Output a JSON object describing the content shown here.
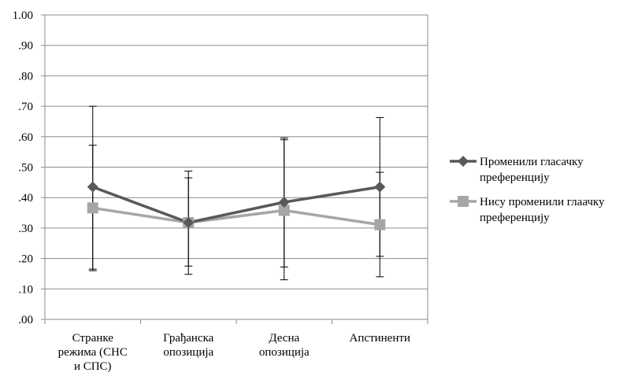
{
  "chart_data": {
    "type": "line",
    "title": "",
    "xlabel": "",
    "ylabel": "",
    "ylim": [
      0,
      1
    ],
    "yticks": [
      1.0,
      0.9,
      0.8,
      0.7,
      0.6,
      0.5,
      0.4,
      0.3,
      0.2,
      0.1,
      0.0
    ],
    "ytick_labels": [
      "1.00",
      ".90",
      ".80",
      ".70",
      ".60",
      ".50",
      ".40",
      ".30",
      ".20",
      ".10",
      ".00"
    ],
    "categories": [
      [
        "Странке",
        "режима (СНС",
        "и СПС)"
      ],
      [
        "Грађанска",
        "опозиција"
      ],
      [
        "Десна",
        "опозиција"
      ],
      [
        "Апстиненти"
      ]
    ],
    "grid": true,
    "legend_position": "right",
    "series": [
      {
        "name": [
          "Променили гласачку",
          "преференцију"
        ],
        "color": "#595959",
        "marker": "diamond",
        "values": [
          0.435,
          0.318,
          0.385,
          0.435
        ],
        "error_low": [
          0.165,
          0.148,
          0.13,
          0.207
        ],
        "error_high": [
          0.7,
          0.487,
          0.596,
          0.663
        ]
      },
      {
        "name": [
          "Нису променили глаачку",
          "преференцију"
        ],
        "color": "#a6a6a6",
        "marker": "square",
        "values": [
          0.366,
          0.318,
          0.358,
          0.311
        ],
        "error_low": [
          0.16,
          0.175,
          0.172,
          0.14
        ],
        "error_high": [
          0.572,
          0.465,
          0.59,
          0.483
        ]
      }
    ]
  }
}
